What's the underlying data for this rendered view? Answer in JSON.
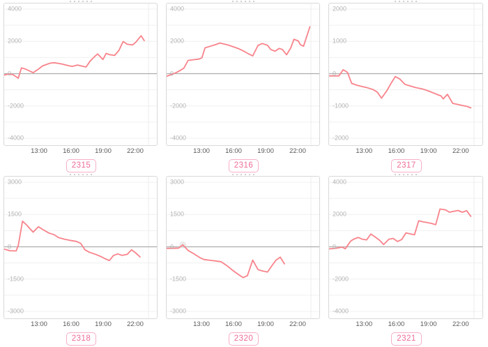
{
  "ui": {
    "line_color": "#f8838b",
    "zero_line_color": "#adadad",
    "grid_color": "#f0f0f0",
    "plot_edge_color": "#ececec",
    "box_border_color": "#d9d9d9",
    "y_label_color": "#b3b3b3",
    "x_label_color": "#585858",
    "badge_text_color": "#ee6d95",
    "badge_border_color": "#f7afc6",
    "marker_color": "#dedede"
  },
  "chart_data": [
    {
      "type": "line",
      "label": "2315",
      "y_min": -4000,
      "y_max": 4000,
      "y_tick_labels": [
        "4000",
        "2000",
        "0",
        "-2000",
        "-4000"
      ],
      "x_tick_labels": [
        "13:00",
        "16:00",
        "19:00",
        "22:00"
      ],
      "x_tick_hours": [
        13,
        16,
        19,
        22
      ],
      "x_domain_hours": [
        9.67,
        23.3
      ],
      "grid_step": 1000,
      "points": [
        [
          9.7,
          -80
        ],
        [
          10.1,
          -20
        ],
        [
          10.5,
          -60
        ],
        [
          11.0,
          -280
        ],
        [
          11.3,
          360
        ],
        [
          11.7,
          280
        ],
        [
          12.4,
          60
        ],
        [
          12.9,
          280
        ],
        [
          13.3,
          480
        ],
        [
          14.0,
          650
        ],
        [
          14.4,
          680
        ],
        [
          15.1,
          600
        ],
        [
          15.8,
          490
        ],
        [
          16.1,
          450
        ],
        [
          16.6,
          535
        ],
        [
          16.9,
          490
        ],
        [
          17.4,
          410
        ],
        [
          17.8,
          790
        ],
        [
          18.2,
          1050
        ],
        [
          18.5,
          1220
        ],
        [
          19.0,
          880
        ],
        [
          19.3,
          1260
        ],
        [
          19.6,
          1180
        ],
        [
          20.1,
          1130
        ],
        [
          20.5,
          1430
        ],
        [
          20.9,
          1990
        ],
        [
          21.3,
          1820
        ],
        [
          21.8,
          1780
        ],
        [
          22.1,
          1950
        ],
        [
          22.6,
          2350
        ],
        [
          22.9,
          2050
        ]
      ]
    },
    {
      "type": "line",
      "label": "2316",
      "y_min": -4000,
      "y_max": 4000,
      "y_tick_labels": [
        "4000",
        "2000",
        "0",
        "-2000",
        "-4000"
      ],
      "x_tick_labels": [
        "13:00",
        "16:00",
        "19:00",
        "22:00"
      ],
      "x_tick_hours": [
        13,
        16,
        19,
        22
      ],
      "x_domain_hours": [
        9.67,
        23.3
      ],
      "grid_step": 1000,
      "points": [
        [
          9.7,
          -150
        ],
        [
          10.1,
          -60
        ],
        [
          10.5,
          40
        ],
        [
          10.9,
          180
        ],
        [
          11.3,
          340
        ],
        [
          11.7,
          820
        ],
        [
          12.3,
          870
        ],
        [
          12.7,
          900
        ],
        [
          13.0,
          980
        ],
        [
          13.3,
          1600
        ],
        [
          13.8,
          1700
        ],
        [
          14.3,
          1800
        ],
        [
          14.7,
          1900
        ],
        [
          15.4,
          1790
        ],
        [
          15.9,
          1680
        ],
        [
          16.5,
          1540
        ],
        [
          17.0,
          1380
        ],
        [
          17.4,
          1230
        ],
        [
          17.8,
          1100
        ],
        [
          18.3,
          1750
        ],
        [
          18.7,
          1870
        ],
        [
          19.2,
          1760
        ],
        [
          19.5,
          1500
        ],
        [
          19.9,
          1390
        ],
        [
          20.3,
          1560
        ],
        [
          20.6,
          1500
        ],
        [
          21.0,
          1170
        ],
        [
          21.4,
          1600
        ],
        [
          21.7,
          2130
        ],
        [
          22.1,
          2030
        ],
        [
          22.3,
          1800
        ],
        [
          22.6,
          1700
        ],
        [
          23.2,
          2900
        ]
      ]
    },
    {
      "type": "line",
      "label": "2317",
      "y_min": -2000,
      "y_max": 2000,
      "y_tick_labels": [
        "2000",
        "1000",
        "0",
        "-1000",
        "-2000"
      ],
      "x_tick_labels": [
        "13:00",
        "16:00",
        "19:00",
        "22:00"
      ],
      "x_tick_hours": [
        13,
        16,
        19,
        22
      ],
      "x_domain_hours": [
        9.67,
        23.3
      ],
      "grid_step": 500,
      "points": [
        [
          9.7,
          -70
        ],
        [
          10.2,
          -70
        ],
        [
          10.6,
          -70
        ],
        [
          11.0,
          120
        ],
        [
          11.4,
          40
        ],
        [
          11.8,
          -300
        ],
        [
          12.3,
          -360
        ],
        [
          12.8,
          -400
        ],
        [
          13.3,
          -440
        ],
        [
          13.8,
          -490
        ],
        [
          14.2,
          -570
        ],
        [
          14.6,
          -760
        ],
        [
          15.1,
          -530
        ],
        [
          15.5,
          -300
        ],
        [
          15.9,
          -90
        ],
        [
          16.3,
          -160
        ],
        [
          16.8,
          -330
        ],
        [
          17.3,
          -380
        ],
        [
          17.8,
          -430
        ],
        [
          18.4,
          -470
        ],
        [
          18.8,
          -510
        ],
        [
          19.2,
          -560
        ],
        [
          19.8,
          -640
        ],
        [
          20.2,
          -690
        ],
        [
          20.4,
          -780
        ],
        [
          20.8,
          -640
        ],
        [
          21.3,
          -920
        ],
        [
          21.7,
          -950
        ],
        [
          22.1,
          -980
        ],
        [
          22.6,
          -1010
        ],
        [
          23.0,
          -1060
        ]
      ]
    },
    {
      "type": "line",
      "label": "2318",
      "y_min": -3000,
      "y_max": 3000,
      "y_tick_labels": [
        "3000",
        "1500",
        "0",
        "-1500",
        "-3000"
      ],
      "x_tick_labels": [
        "13:00",
        "16:00",
        "19:00",
        "22:00"
      ],
      "x_tick_hours": [
        13,
        16,
        19,
        22
      ],
      "x_domain_hours": [
        9.67,
        23.3
      ],
      "grid_step": 750,
      "points": [
        [
          9.7,
          -110
        ],
        [
          10.2,
          -180
        ],
        [
          10.8,
          -190
        ],
        [
          11.0,
          60
        ],
        [
          11.4,
          1190
        ],
        [
          11.8,
          1010
        ],
        [
          12.4,
          680
        ],
        [
          12.9,
          930
        ],
        [
          13.3,
          810
        ],
        [
          13.9,
          640
        ],
        [
          14.4,
          560
        ],
        [
          14.8,
          430
        ],
        [
          15.4,
          350
        ],
        [
          15.9,
          300
        ],
        [
          16.5,
          250
        ],
        [
          16.9,
          160
        ],
        [
          17.3,
          -140
        ],
        [
          17.7,
          -250
        ],
        [
          18.3,
          -350
        ],
        [
          18.8,
          -450
        ],
        [
          19.2,
          -550
        ],
        [
          19.6,
          -640
        ],
        [
          20.0,
          -400
        ],
        [
          20.4,
          -330
        ],
        [
          20.8,
          -400
        ],
        [
          21.3,
          -350
        ],
        [
          21.7,
          -140
        ],
        [
          22.1,
          -290
        ],
        [
          22.5,
          -470
        ]
      ]
    },
    {
      "type": "line",
      "label": "2320",
      "y_min": -3000,
      "y_max": 3000,
      "y_tick_labels": [
        "3000",
        "1500",
        "0",
        "-1500",
        "-3000"
      ],
      "x_tick_labels": [
        "13:00",
        "16:00",
        "19:00",
        "22:00"
      ],
      "x_tick_hours": [
        13,
        16,
        19,
        22
      ],
      "x_domain_hours": [
        9.67,
        23.3
      ],
      "grid_step": 750,
      "marker_point": [
        11.2,
        90
      ],
      "points": [
        [
          9.7,
          -70
        ],
        [
          10.2,
          -70
        ],
        [
          10.8,
          -60
        ],
        [
          11.2,
          90
        ],
        [
          11.7,
          -170
        ],
        [
          12.3,
          -340
        ],
        [
          12.8,
          -500
        ],
        [
          13.2,
          -590
        ],
        [
          13.8,
          -630
        ],
        [
          14.3,
          -660
        ],
        [
          14.8,
          -690
        ],
        [
          15.4,
          -890
        ],
        [
          15.9,
          -1090
        ],
        [
          16.5,
          -1300
        ],
        [
          16.9,
          -1430
        ],
        [
          17.3,
          -1340
        ],
        [
          17.8,
          -620
        ],
        [
          18.3,
          -1060
        ],
        [
          18.7,
          -1120
        ],
        [
          19.2,
          -1170
        ],
        [
          19.6,
          -890
        ],
        [
          20.0,
          -620
        ],
        [
          20.4,
          -480
        ],
        [
          20.8,
          -790
        ]
      ]
    },
    {
      "type": "line",
      "label": "2321",
      "y_min": -4000,
      "y_max": 4000,
      "y_tick_labels": [
        "4000",
        "2000",
        "0",
        "-2000",
        "-4000"
      ],
      "x_tick_labels": [
        "13:00",
        "16:00",
        "19:00",
        "22:00"
      ],
      "x_tick_hours": [
        13,
        16,
        19,
        22
      ],
      "x_domain_hours": [
        9.67,
        23.3
      ],
      "grid_step": 1000,
      "points": [
        [
          9.7,
          -130
        ],
        [
          10.3,
          -90
        ],
        [
          10.9,
          -20
        ],
        [
          11.2,
          -120
        ],
        [
          11.7,
          350
        ],
        [
          12.0,
          480
        ],
        [
          12.4,
          580
        ],
        [
          12.8,
          470
        ],
        [
          13.2,
          430
        ],
        [
          13.6,
          790
        ],
        [
          14.0,
          610
        ],
        [
          14.4,
          420
        ],
        [
          14.8,
          140
        ],
        [
          15.3,
          470
        ],
        [
          15.7,
          520
        ],
        [
          16.1,
          330
        ],
        [
          16.5,
          450
        ],
        [
          16.9,
          860
        ],
        [
          17.3,
          800
        ],
        [
          17.7,
          750
        ],
        [
          18.1,
          1610
        ],
        [
          18.5,
          1550
        ],
        [
          18.9,
          1500
        ],
        [
          19.3,
          1450
        ],
        [
          19.7,
          1370
        ],
        [
          20.1,
          2340
        ],
        [
          20.6,
          2290
        ],
        [
          21.0,
          2140
        ],
        [
          21.4,
          2200
        ],
        [
          21.8,
          2250
        ],
        [
          22.2,
          2140
        ],
        [
          22.6,
          2240
        ],
        [
          23.0,
          1890
        ]
      ]
    }
  ]
}
